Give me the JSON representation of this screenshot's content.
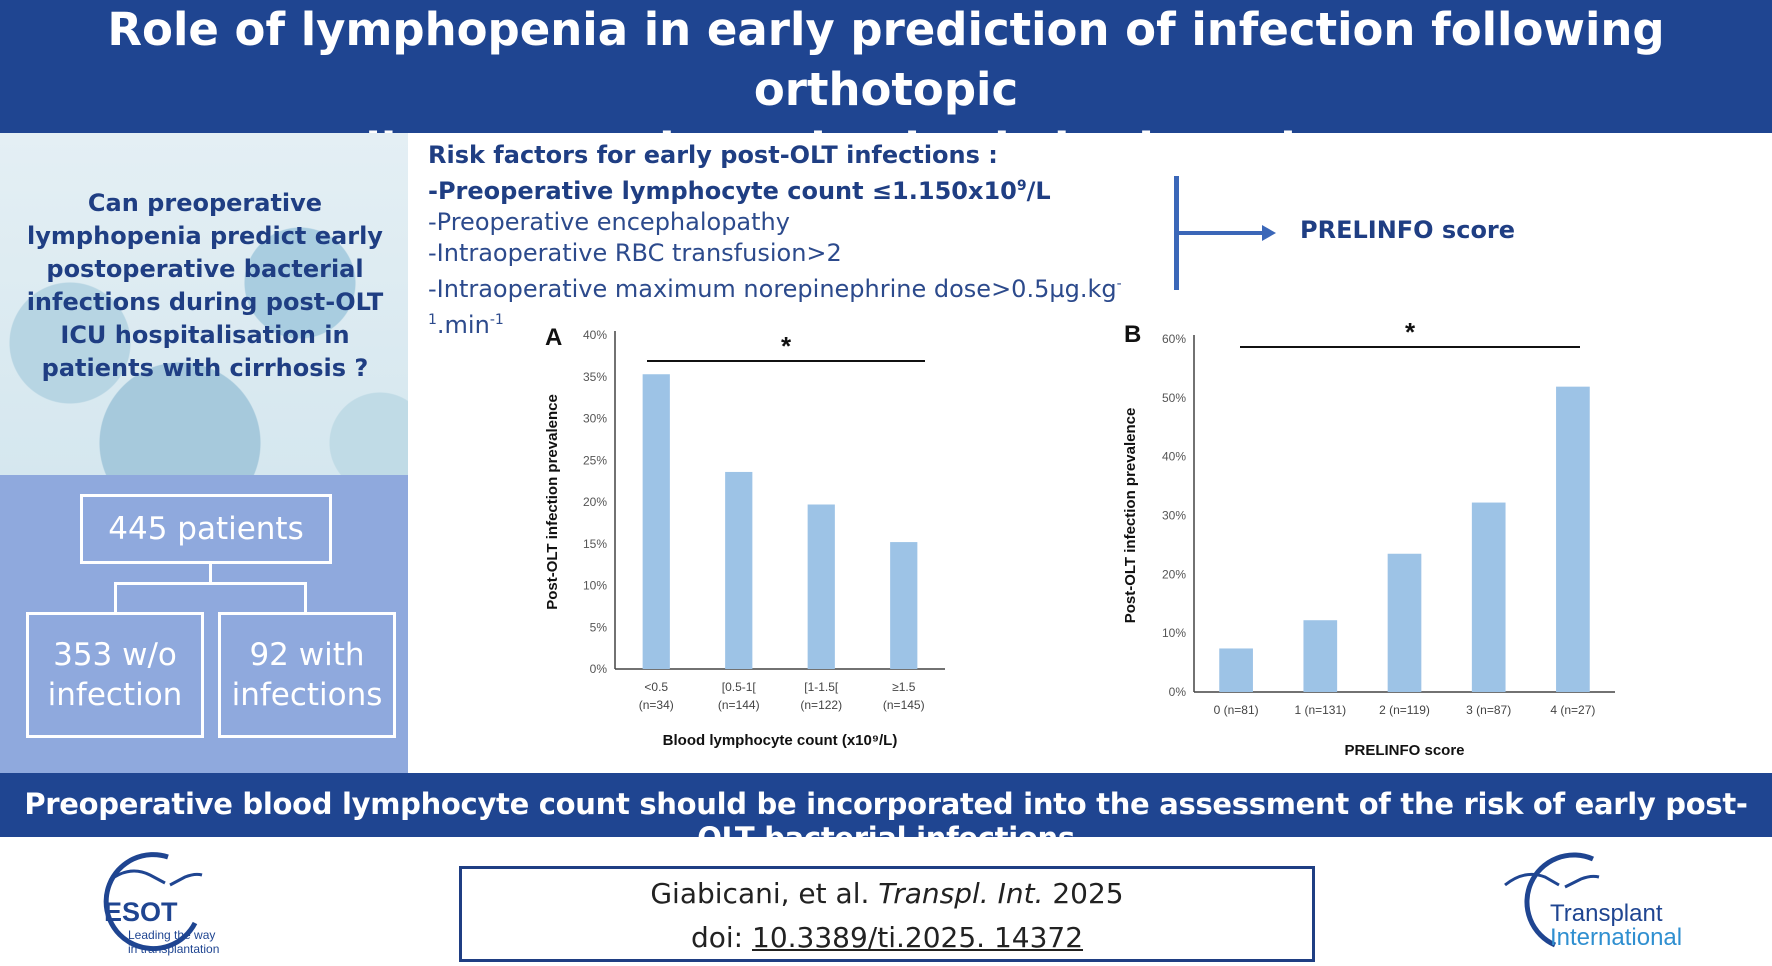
{
  "header": {
    "title_line1": "Role of lymphopenia in early prediction of infection following orthotopic",
    "title_line2": "liver transplantation in cirrhotic patients",
    "background_color": "#1f4591"
  },
  "left_panel": {
    "question": "Can preoperative lymphopenia predict early postoperative bacterial infections during post-OLT ICU hospitalisation in patients with cirrhosis ?",
    "total_patients": "445 patients",
    "without_infection_line1": "353 w/o",
    "without_infection_line2": "infection",
    "with_infection_line1": "92 with",
    "with_infection_line2": "infections"
  },
  "risk_factors": {
    "title": "Risk factors for early post-OLT infections :",
    "factor1_prefix": "-Preoperative lymphocyte count ≤1.150x10",
    "factor1_sup": "9",
    "factor1_suffix": "/L",
    "factor2": "-Preoperative encephalopathy",
    "factor3": "-Intraoperative RBC transfusion>2",
    "factor4_prefix": "-Intraoperative maximum norepinephrine dose>0.5µg.kg",
    "factor4_sup1": "-1",
    "factor4_mid": ".min",
    "factor4_sup2": "-1",
    "result": "PRELINFO score"
  },
  "chart_data": [
    {
      "type": "bar",
      "panel_label": "A",
      "categories": [
        "<0.5",
        "[0.5-1[",
        "[1-1.5[",
        "≥1.5"
      ],
      "category_counts": [
        "(n=34)",
        "(n=144)",
        "(n=122)",
        "(n=145)"
      ],
      "values": [
        35.3,
        23.6,
        19.7,
        15.2
      ],
      "xlabel": "Blood lymphocyte count (x10⁹/L)",
      "ylabel": "Post-OLT infection prevalence",
      "ylim": [
        0,
        40
      ],
      "yticks": [
        "0%",
        "5%",
        "10%",
        "15%",
        "20%",
        "25%",
        "30%",
        "35%",
        "40%"
      ],
      "significance": "*",
      "bar_color": "#9dc3e6",
      "grid": false
    },
    {
      "type": "bar",
      "panel_label": "B",
      "categories": [
        "0 (n=81)",
        "1 (n=131)",
        "2 (n=119)",
        "3 (n=87)",
        "4 (n=27)"
      ],
      "values": [
        7.4,
        12.2,
        23.5,
        32.2,
        51.9
      ],
      "xlabel": "PRELINFO score",
      "ylabel": "Post-OLT infection prevalence",
      "ylim": [
        0,
        60
      ],
      "yticks": [
        "0%",
        "10%",
        "20%",
        "30%",
        "40%",
        "50%",
        "60%"
      ],
      "significance": "*",
      "bar_color": "#9dc3e6",
      "grid": false
    }
  ],
  "footer": {
    "conclusion": "Preoperative blood lymphocyte count should be incorporated into the assessment of the risk of early post-OLT bacterial infections",
    "citation_authors": "Giabicani, et al.",
    "citation_journal": "Transpl. Int.",
    "citation_year": "2025",
    "doi_label": "doi:",
    "doi_value": "10.3389/ti.2025. 14372",
    "left_logo_text": "ESOT",
    "left_logo_tagline1": "Leading the way",
    "left_logo_tagline2": "in transplantation",
    "right_logo_line1": "Transplant",
    "right_logo_line2": "International"
  }
}
